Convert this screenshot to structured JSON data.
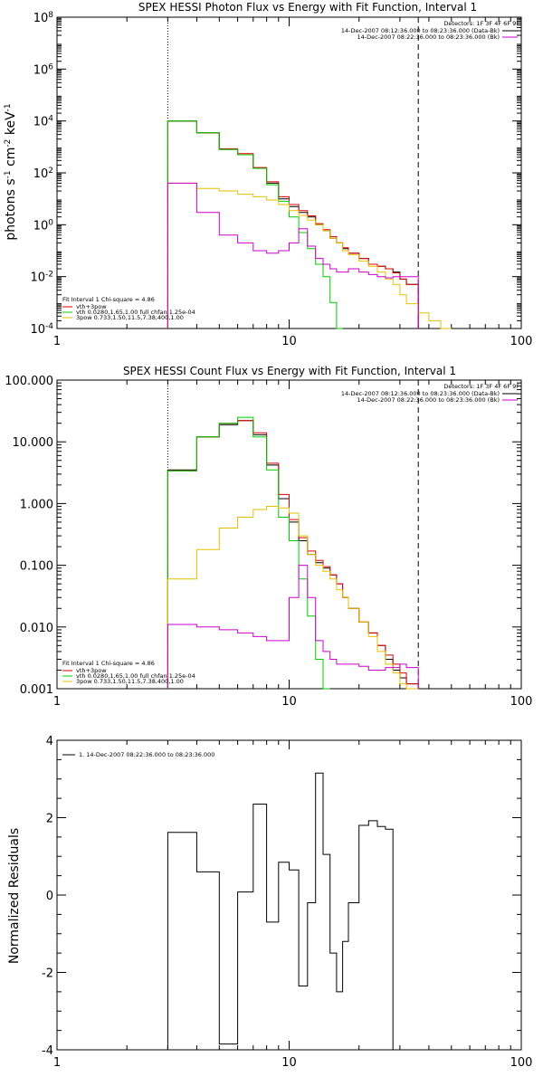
{
  "chart_data": [
    {
      "type": "line",
      "title": "SPEX HESSI Photon Flux vs Energy with Fit Function, Interval 1",
      "ylabel": "photons s$^{-1}$ cm$^{-2}$ keV$^{-1}$",
      "ylabel_display": [
        "photons s",
        "-1",
        " cm",
        "-2",
        " keV",
        "-1"
      ],
      "xlabel": "",
      "xscale": "log",
      "yscale": "log",
      "xlim": [
        1,
        100
      ],
      "ylim": [
        0.0001,
        100000000
      ],
      "xticks": [
        "1",
        "10",
        "100"
      ],
      "yticks": [
        "10^-4",
        "10^-2",
        "10^0",
        "10^2",
        "10^4",
        "10^6",
        "10^8"
      ],
      "vlines": [
        {
          "x": 3,
          "style": "dotted"
        },
        {
          "x": 36,
          "style": "dashed"
        }
      ],
      "detectors_label": "Detectors: 1F 3F 4F 6F 9F",
      "legend_topright": [
        {
          "text": "14-Dec-2007 08:12:36.000 to 08:23:36.000 (Data-Bk)",
          "color": "#000000"
        },
        {
          "text": "14-Dec-2007 08:22:36.000 to 08:23:36.000 (Bk)",
          "color": "#cc00cc"
        }
      ],
      "fit_header": "Fit Interval 1    Chi-square = 4.86",
      "legend_bottomleft": [
        {
          "text": "vth+3pow",
          "color": "#dd0000"
        },
        {
          "text": "vth 0.0280,1.65,1.00  full chfan 1.25e-04",
          "color": "#00cc00"
        },
        {
          "text": "3pow 0.733,1.50,11.5,7.38,400,1.00",
          "color": "#e6c000"
        }
      ],
      "edges": [
        3,
        4,
        5,
        6,
        7,
        8,
        9,
        10,
        11,
        12,
        13,
        14,
        15,
        16,
        17,
        18,
        20,
        22,
        24,
        26,
        28,
        30,
        32,
        36,
        40,
        45,
        50
      ],
      "series": [
        {
          "name": "Data-Bk",
          "color": "#000000",
          "values": [
            10000,
            3500,
            800,
            500,
            150,
            40,
            10,
            5,
            3,
            2,
            1,
            0.6,
            0.3,
            0.2,
            0.12,
            0.08,
            0.05,
            0.03,
            0.025,
            0.02,
            0.015,
            0.008,
            0.005,
            null,
            null,
            null
          ]
        },
        {
          "name": "vth+3pow",
          "color": "#dd0000",
          "values": [
            10000,
            3500,
            850,
            550,
            160,
            45,
            12,
            6,
            3.5,
            2.2,
            1.1,
            0.65,
            0.35,
            0.2,
            0.13,
            0.08,
            0.05,
            0.03,
            0.025,
            0.02,
            0.014,
            0.008,
            0.005,
            null,
            null,
            null
          ]
        },
        {
          "name": "vth",
          "color": "#00cc00",
          "values": [
            10000,
            3500,
            800,
            500,
            150,
            35,
            8,
            2,
            0.5,
            0.12,
            0.03,
            0.01,
            0.001,
            0.0001,
            null,
            null,
            null,
            null,
            null,
            null,
            null,
            null,
            null,
            null,
            null,
            null
          ]
        },
        {
          "name": "3pow",
          "color": "#e6c000",
          "values": [
            40,
            25,
            20,
            15,
            12,
            9,
            6,
            3.5,
            2.3,
            1.5,
            1,
            0.6,
            0.3,
            0.2,
            0.1,
            0.07,
            0.04,
            0.025,
            0.015,
            0.008,
            0.005,
            0.002,
            0.0009,
            0.0004,
            0.0002,
            0.0001
          ]
        },
        {
          "name": "Bk",
          "color": "#cc00cc",
          "values": [
            40,
            3,
            0.4,
            0.2,
            0.1,
            0.08,
            0.1,
            0.2,
            0.7,
            0.15,
            0.05,
            0.03,
            0.02,
            0.015,
            0.015,
            0.02,
            0.015,
            0.012,
            0.01,
            0.009,
            0.01,
            0.01,
            0.01,
            null,
            null,
            null
          ]
        }
      ]
    },
    {
      "type": "line",
      "title": "SPEX HESSI Count Flux vs Energy with Fit Function, Interval 1",
      "ylabel": "",
      "xlabel": "",
      "xscale": "log",
      "yscale": "log",
      "xlim": [
        1,
        100
      ],
      "ylim": [
        0.001,
        100
      ],
      "xticks": [
        "1",
        "10",
        "100"
      ],
      "yticks": [
        "0.001",
        "0.010",
        "0.100",
        "1.000",
        "10.000",
        "100.000"
      ],
      "vlines": [
        {
          "x": 3,
          "style": "dotted"
        },
        {
          "x": 36,
          "style": "dashed"
        }
      ],
      "detectors_label": "Detectors: 1F 3F 4F 6F 9F",
      "legend_topright": [
        {
          "text": "14-Dec-2007 08:12:36.000 to 08:23:36.000 (Data-Bk)",
          "color": "#000000"
        },
        {
          "text": "14-Dec-2007 08:22:36.000 to 08:23:36.000 (Bk)",
          "color": "#cc00cc"
        }
      ],
      "fit_header": "Fit Interval 1    Chi-square = 4.86",
      "legend_bottomleft": [
        {
          "text": "vth+3pow",
          "color": "#dd0000"
        },
        {
          "text": "vth 0.0280,1.65,1.00  full chfan 1.25e-04",
          "color": "#00cc00"
        },
        {
          "text": "3pow 0.733,1.50,11.5,7.38,400,1.00",
          "color": "#e6c000"
        }
      ],
      "edges": [
        3,
        4,
        5,
        6,
        7,
        8,
        9,
        10,
        11,
        12,
        13,
        14,
        15,
        16,
        17,
        18,
        20,
        22,
        24,
        26,
        28,
        30,
        32,
        36
      ],
      "series": [
        {
          "name": "Data-Bk",
          "color": "#000000",
          "values": [
            3.5,
            12,
            19,
            22,
            13,
            4.2,
            1.2,
            0.5,
            0.25,
            0.15,
            0.11,
            0.09,
            0.07,
            0.05,
            0.03,
            0.02,
            0.012,
            0.008,
            0.005,
            0.003,
            0.002,
            0.0015,
            0.0012
          ]
        },
        {
          "name": "vth+3pow",
          "color": "#dd0000",
          "values": [
            3.4,
            12,
            20,
            22,
            14,
            4.5,
            1.4,
            0.55,
            0.28,
            0.17,
            0.12,
            0.095,
            0.07,
            0.05,
            0.03,
            0.02,
            0.012,
            0.008,
            0.005,
            0.0035,
            0.0025,
            0.0018,
            0.0012
          ]
        },
        {
          "name": "vth",
          "color": "#00cc00",
          "values": [
            3.4,
            12,
            20,
            25,
            12,
            3.5,
            0.6,
            0.25,
            0.06,
            0.015,
            0.003,
            0.0008,
            null,
            null,
            null,
            null,
            null,
            null,
            null,
            null,
            null,
            null,
            null
          ]
        },
        {
          "name": "3pow",
          "color": "#e6c000",
          "values": [
            0.06,
            0.18,
            0.4,
            0.6,
            0.8,
            0.9,
            0.85,
            0.7,
            0.3,
            0.15,
            0.1,
            0.08,
            0.06,
            0.04,
            0.03,
            0.02,
            0.012,
            0.007,
            0.004,
            0.0025,
            0.0018,
            0.0012,
            0.001
          ]
        },
        {
          "name": "Bk",
          "color": "#cc00cc",
          "values": [
            0.011,
            0.01,
            0.009,
            0.008,
            0.007,
            0.006,
            0.006,
            0.03,
            0.1,
            0.03,
            0.006,
            0.004,
            0.003,
            0.0025,
            0.0025,
            0.0025,
            0.0023,
            0.002,
            0.002,
            0.0022,
            0.0022,
            0.0025,
            0.0022
          ]
        }
      ]
    },
    {
      "type": "line",
      "title": "",
      "ylabel": "Normalized Residuals",
      "xlabel": "",
      "xscale": "log",
      "yscale": "linear",
      "xlim": [
        1,
        100
      ],
      "ylim": [
        -4,
        4
      ],
      "xticks": [
        "1",
        "10",
        "100"
      ],
      "yticks": [
        "-4",
        "-2",
        "0",
        "2",
        "4"
      ],
      "legend": [
        {
          "text": "1. 14-Dec-2007 08:22:36.000 to 08:23:36.000",
          "color": "#000000"
        }
      ],
      "edges": [
        3,
        4,
        5,
        6,
        7,
        8,
        9,
        10,
        11,
        12,
        13,
        14,
        15,
        16,
        17,
        18,
        20,
        22,
        24,
        26,
        28,
        30,
        32,
        36
      ],
      "series": [
        {
          "name": "residuals",
          "color": "#000000",
          "values": [
            1.62,
            0.6,
            -3.85,
            0.08,
            2.35,
            -0.7,
            0.85,
            0.65,
            -2.35,
            -0.2,
            3.15,
            1.05,
            -1.5,
            -2.5,
            -1.2,
            -0.2,
            1.8,
            1.92,
            1.77,
            1.7,
            null,
            null,
            null
          ]
        }
      ]
    }
  ]
}
